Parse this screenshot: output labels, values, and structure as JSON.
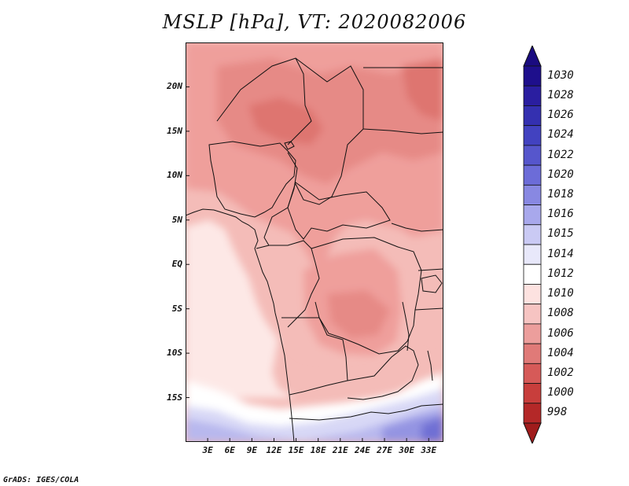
{
  "title": "MSLP [hPa], VT: 2020082006",
  "credit": "GrADS: IGES/COLA",
  "map": {
    "projection": "lat-lon",
    "lon_range_deg": [
      0,
      35
    ],
    "lat_range_deg": [
      -20,
      25
    ],
    "y_ticks": [
      {
        "label": "20N",
        "lat": 20
      },
      {
        "label": "15N",
        "lat": 15
      },
      {
        "label": "10N",
        "lat": 10
      },
      {
        "label": "5N",
        "lat": 5
      },
      {
        "label": "EQ",
        "lat": 0
      },
      {
        "label": "5S",
        "lat": -5
      },
      {
        "label": "10S",
        "lat": -10
      },
      {
        "label": "15S",
        "lat": -15
      }
    ],
    "x_ticks": [
      {
        "label": "3E",
        "lon": 3
      },
      {
        "label": "6E",
        "lon": 6
      },
      {
        "label": "9E",
        "lon": 9
      },
      {
        "label": "12E",
        "lon": 12
      },
      {
        "label": "15E",
        "lon": 15
      },
      {
        "label": "18E",
        "lon": 18
      },
      {
        "label": "21E",
        "lon": 21
      },
      {
        "label": "24E",
        "lon": 24
      },
      {
        "label": "27E",
        "lon": 27
      },
      {
        "label": "30E",
        "lon": 30
      },
      {
        "label": "33E",
        "lon": 33
      }
    ]
  },
  "colorbar": {
    "levels": [
      {
        "label": "1030",
        "color": "#1e0f8c"
      },
      {
        "label": "1028",
        "color": "#2a1ea0"
      },
      {
        "label": "1026",
        "color": "#3430b0"
      },
      {
        "label": "1024",
        "color": "#4242c0"
      },
      {
        "label": "1022",
        "color": "#5656cc"
      },
      {
        "label": "1020",
        "color": "#6c6cd8"
      },
      {
        "label": "1018",
        "color": "#8888e2"
      },
      {
        "label": "1016",
        "color": "#a8a8ec"
      },
      {
        "label": "1015",
        "color": "#cacaf4"
      },
      {
        "label": "1014",
        "color": "#e8e8fa"
      },
      {
        "label": "1012",
        "color": "#ffffff"
      },
      {
        "label": "1010",
        "color": "#fde2e0"
      },
      {
        "label": "1008",
        "color": "#f6c4c2"
      },
      {
        "label": "1006",
        "color": "#ec9e9c"
      },
      {
        "label": "1004",
        "color": "#e07a78"
      },
      {
        "label": "1002",
        "color": "#d65a58"
      },
      {
        "label": "1000",
        "color": "#c83e3c"
      },
      {
        "label": "998",
        "color": "#b42828"
      }
    ],
    "over_color": "#1a0b80",
    "under_color": "#a01c1c"
  },
  "field_colors": {
    "ocean_light": "#fde8e6",
    "ocean_lighter": "#fef2f0",
    "land_1010": "#f4bcb8",
    "land_1008": "#ef9f9b",
    "land_1006": "#e68a86",
    "land_1004": "#de7470",
    "white_band": "#ffffff",
    "blue_1": "#d8d8f6",
    "blue_2": "#b8b8ee",
    "blue_3": "#9494e2",
    "blue_4": "#7070d4"
  }
}
